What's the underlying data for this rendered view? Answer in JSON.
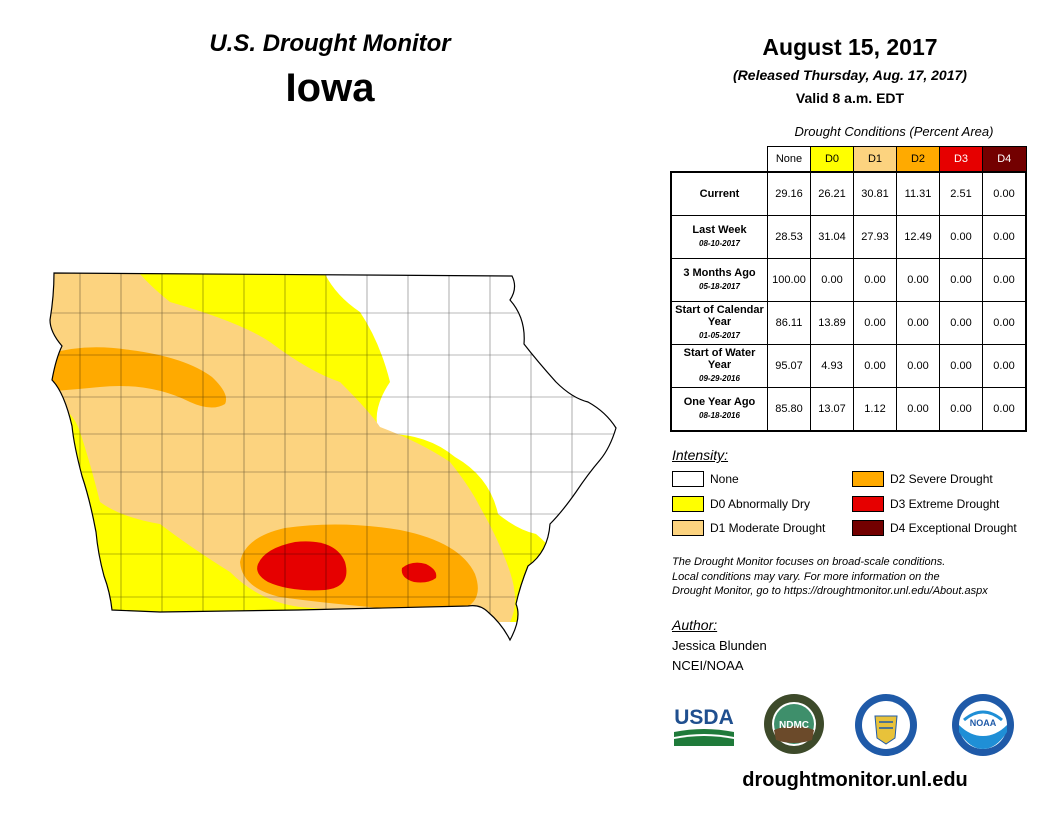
{
  "header": {
    "title": "U.S. Drought Monitor",
    "state": "Iowa",
    "date": "August 15, 2017",
    "released": "(Released Thursday, Aug. 17, 2017)",
    "valid": "Valid 8 a.m. EDT"
  },
  "table": {
    "title": "Drought Conditions (Percent Area)",
    "columns": [
      "None",
      "D0",
      "D1",
      "D2",
      "D3",
      "D4"
    ],
    "rows": [
      {
        "label": "Current",
        "date": "",
        "values": [
          "29.16",
          "26.21",
          "30.81",
          "11.31",
          "2.51",
          "0.00"
        ]
      },
      {
        "label": "Last Week",
        "date": "08-10-2017",
        "values": [
          "28.53",
          "31.04",
          "27.93",
          "12.49",
          "0.00",
          "0.00"
        ]
      },
      {
        "label": "3 Months Ago",
        "date": "05-18-2017",
        "values": [
          "100.00",
          "0.00",
          "0.00",
          "0.00",
          "0.00",
          "0.00"
        ]
      },
      {
        "label": "Start of Calendar Year",
        "date": "01-05-2017",
        "values": [
          "86.11",
          "13.89",
          "0.00",
          "0.00",
          "0.00",
          "0.00"
        ]
      },
      {
        "label": "Start of Water Year",
        "date": "09-29-2016",
        "values": [
          "95.07",
          "4.93",
          "0.00",
          "0.00",
          "0.00",
          "0.00"
        ]
      },
      {
        "label": "One Year Ago",
        "date": "08-18-2016",
        "values": [
          "85.80",
          "13.07",
          "1.12",
          "0.00",
          "0.00",
          "0.00"
        ]
      }
    ]
  },
  "legend": {
    "title": "Intensity:",
    "items": [
      {
        "label": "None",
        "color": "#ffffff"
      },
      {
        "label": "D0 Abnormally Dry",
        "color": "#ffff00"
      },
      {
        "label": "D1 Moderate Drought",
        "color": "#fcd37f"
      },
      {
        "label": "D2 Severe Drought",
        "color": "#ffaa00"
      },
      {
        "label": "D3 Extreme Drought",
        "color": "#e60000"
      },
      {
        "label": "D4 Exceptional Drought",
        "color": "#730000"
      }
    ]
  },
  "note": {
    "line1": "The Drought Monitor focuses on broad-scale conditions.",
    "line2": "Local conditions may vary. For more information on the",
    "line3": "Drought Monitor, go to https://droughtmonitor.unl.edu/About.aspx"
  },
  "author": {
    "title": "Author:",
    "name": "Jessica Blunden",
    "org": "NCEI/NOAA"
  },
  "logos": {
    "usda": "USDA",
    "ndmc": "NDMC",
    "noaa": "NOAA"
  },
  "footer": {
    "site": "droughtmonitor.unl.edu"
  },
  "colors": {
    "none": "#ffffff",
    "d0": "#ffff00",
    "d1": "#fcd37f",
    "d2": "#ffaa00",
    "d3": "#e60000",
    "d4": "#730000"
  }
}
